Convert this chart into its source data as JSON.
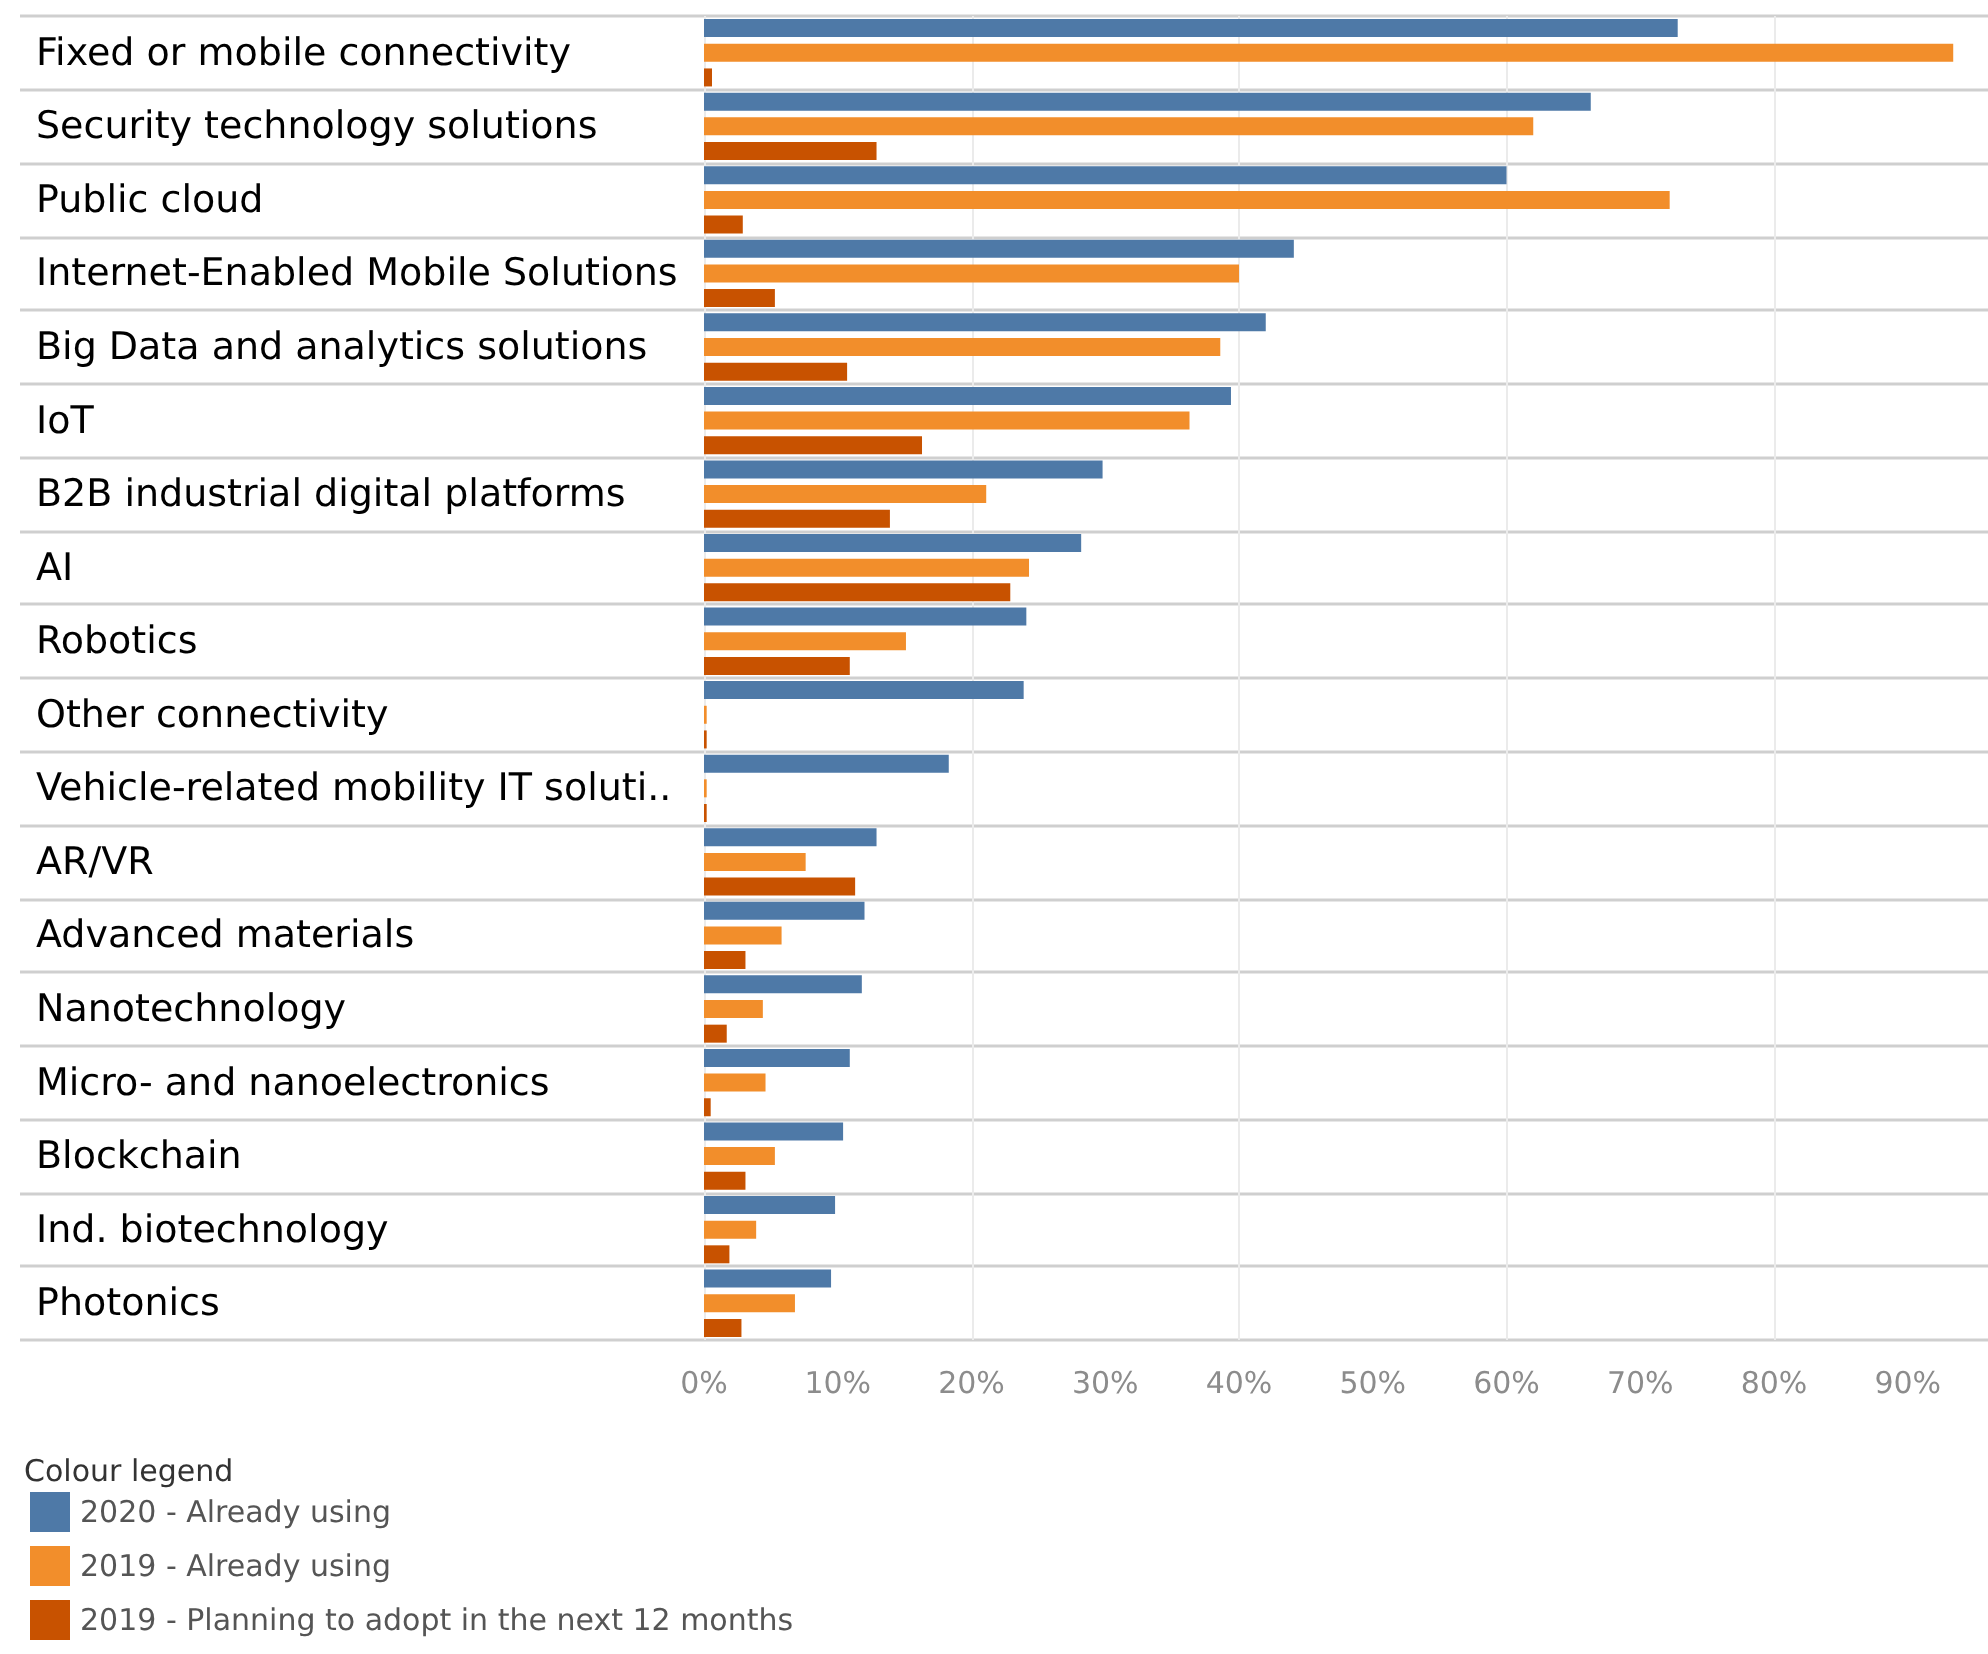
{
  "chart_data": {
    "type": "bar",
    "orientation": "horizontal",
    "categories": [
      "Fixed or mobile connectivity",
      "Security technology solutions",
      "Public cloud",
      "Internet-Enabled Mobile Solutions",
      "Big Data and analytics solutions",
      "IoT",
      "B2B industrial digital platforms",
      "AI",
      "Robotics",
      "Other connectivity",
      "Vehicle-related mobility IT soluti..",
      "AR/VR",
      "Advanced materials",
      "Nanotechnology",
      "Micro- and nanoelectronics",
      "Blockchain",
      "Ind. biotechnology",
      "Photonics"
    ],
    "series": [
      {
        "name": "2020 - Already using",
        "color": "#4e79a7",
        "values": [
          72.8,
          66.3,
          60.0,
          44.1,
          42.0,
          39.4,
          29.8,
          28.2,
          24.1,
          23.9,
          18.3,
          12.9,
          12.0,
          11.8,
          10.9,
          10.4,
          9.8,
          9.5
        ]
      },
      {
        "name": "2019 - Already using",
        "color": "#f28e2b",
        "values": [
          93.4,
          62.0,
          72.2,
          40.0,
          38.6,
          36.3,
          21.1,
          24.3,
          15.1,
          0.2,
          0.2,
          7.6,
          5.8,
          4.4,
          4.6,
          5.3,
          3.9,
          6.8
        ]
      },
      {
        "name": "2019 - Planning to adopt in the next 12 months",
        "color": "#c85200",
        "values": [
          0.6,
          12.9,
          2.9,
          5.3,
          10.7,
          16.3,
          13.9,
          22.9,
          10.9,
          0.2,
          0.2,
          11.3,
          3.1,
          1.7,
          0.5,
          3.1,
          1.9,
          2.8
        ]
      }
    ],
    "xlim": [
      0,
      96
    ],
    "xticks": [
      {
        "value": 0,
        "label": "0%"
      },
      {
        "value": 10,
        "label": "10%"
      },
      {
        "value": 20,
        "label": "20%"
      },
      {
        "value": 30,
        "label": "30%"
      },
      {
        "value": 40,
        "label": "40%"
      },
      {
        "value": 50,
        "label": "50%"
      },
      {
        "value": 60,
        "label": "60%"
      },
      {
        "value": 70,
        "label": "70%"
      },
      {
        "value": 80,
        "label": "80%"
      },
      {
        "value": 90,
        "label": "90%"
      }
    ],
    "grid": true,
    "legend": "bottom left",
    "legend_title": "Colour legend"
  }
}
